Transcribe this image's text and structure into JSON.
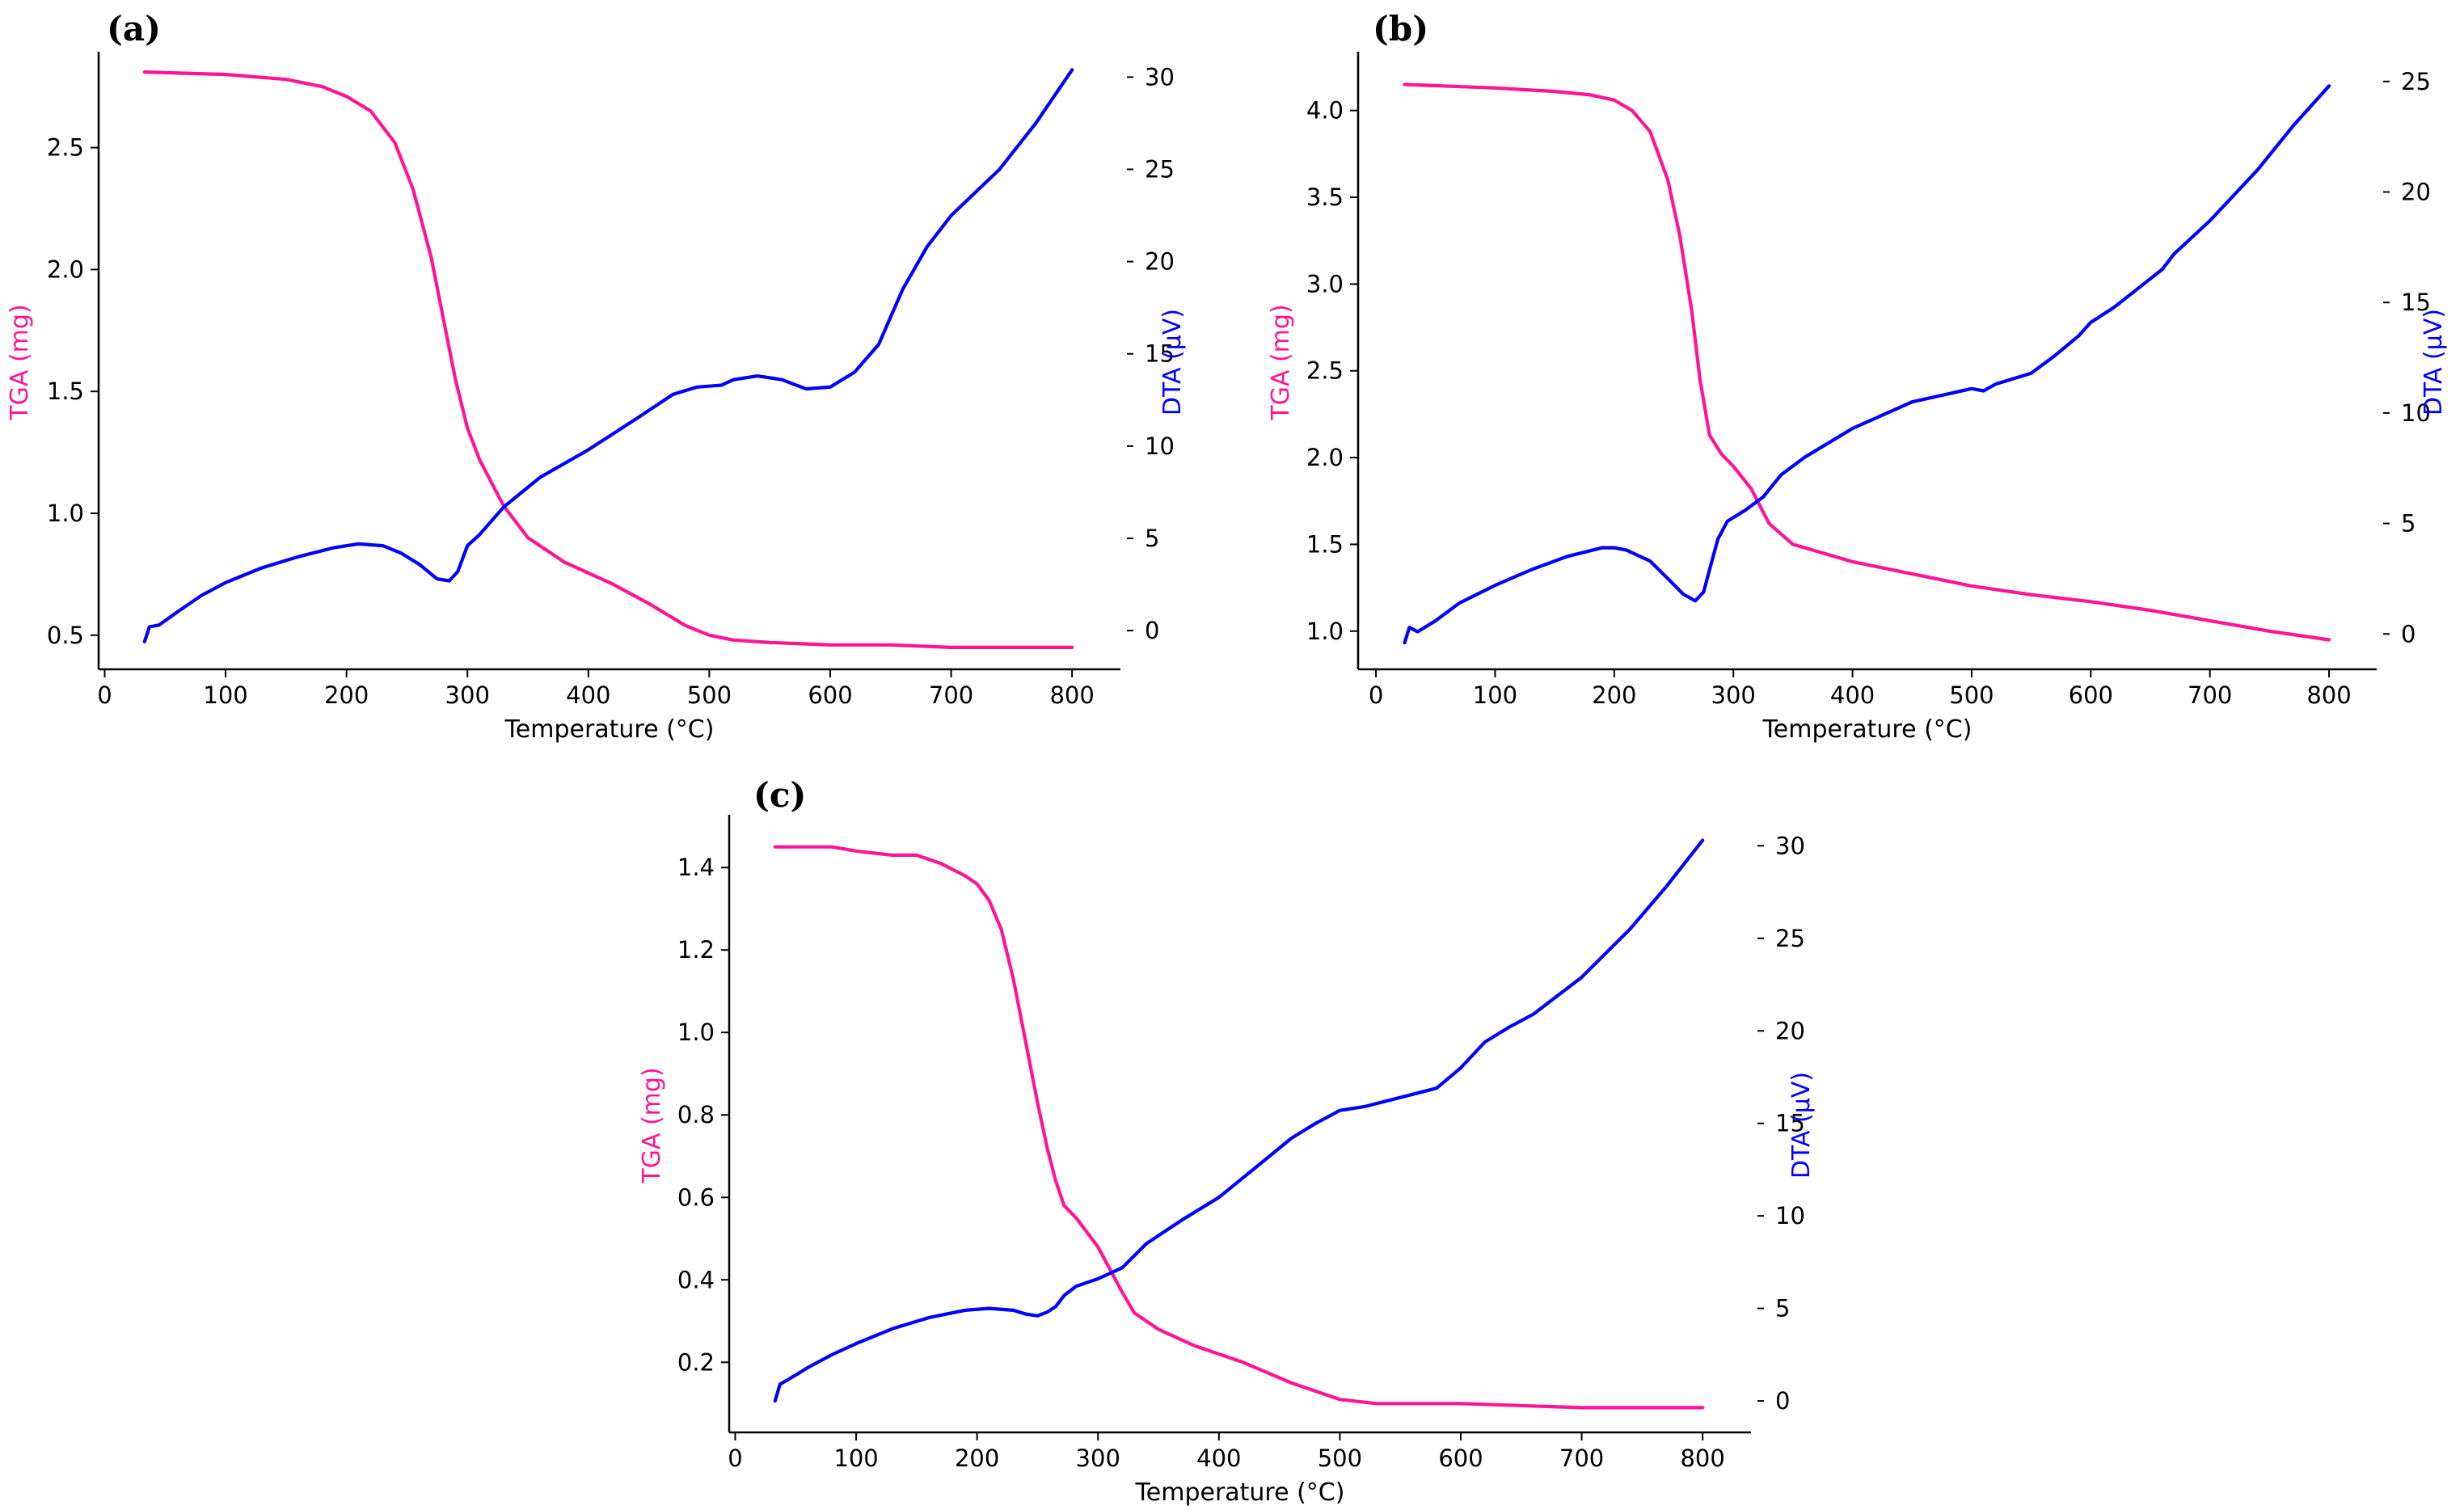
{
  "colors": {
    "tga": "#ff1493",
    "dta": "#0000ff",
    "axis": "#000000"
  },
  "chart_data": [
    {
      "type": "line",
      "panel_label": "(a)",
      "xlabel": "Temperature (°C)",
      "ylabel": "TGA (mg)",
      "y2label": "DTA (µV)",
      "xlim": [
        -5,
        840
      ],
      "ylim": [
        0.36,
        2.88
      ],
      "y2lim": [
        -2.1,
        31.2
      ],
      "xticks": [
        0,
        100,
        200,
        300,
        400,
        500,
        600,
        700,
        800
      ],
      "yticks": [
        0.5,
        1.0,
        1.5,
        2.0,
        2.5
      ],
      "y2ticks": [
        0,
        5,
        10,
        15,
        20,
        25,
        30
      ],
      "series": [
        {
          "name": "TGA",
          "axis": "left",
          "color": "#ff1493",
          "x": [
            33,
            100,
            150,
            180,
            200,
            220,
            240,
            255,
            270,
            280,
            290,
            300,
            310,
            330,
            350,
            380,
            420,
            450,
            480,
            500,
            520,
            550,
            600,
            650,
            700,
            800
          ],
          "y": [
            2.81,
            2.8,
            2.78,
            2.75,
            2.71,
            2.65,
            2.52,
            2.33,
            2.05,
            1.8,
            1.55,
            1.35,
            1.22,
            1.03,
            0.9,
            0.8,
            0.71,
            0.63,
            0.54,
            0.5,
            0.48,
            0.47,
            0.46,
            0.46,
            0.45,
            0.45
          ]
        },
        {
          "name": "DTA",
          "axis": "right",
          "color": "#0000ff",
          "x": [
            33,
            37,
            45,
            60,
            80,
            100,
            130,
            160,
            190,
            210,
            230,
            245,
            260,
            275,
            285,
            292,
            300,
            310,
            330,
            360,
            400,
            440,
            470,
            490,
            510,
            520,
            540,
            560,
            580,
            600,
            620,
            640,
            660,
            680,
            700,
            740,
            770,
            800
          ],
          "y": [
            -0.6,
            0.2,
            0.3,
            1.0,
            1.9,
            2.6,
            3.4,
            4.0,
            4.5,
            4.7,
            4.6,
            4.2,
            3.6,
            2.8,
            2.7,
            3.2,
            4.6,
            5.2,
            6.7,
            8.3,
            9.8,
            11.5,
            12.8,
            13.2,
            13.3,
            13.6,
            13.8,
            13.6,
            13.1,
            13.2,
            14.0,
            15.5,
            18.5,
            20.8,
            22.5,
            25.0,
            27.5,
            30.4
          ]
        }
      ]
    },
    {
      "type": "line",
      "panel_label": "(b)",
      "xlabel": "Temperature (°C)",
      "ylabel": "TGA (mg)",
      "y2label": "DTA (µV)",
      "xlim": [
        -15,
        840
      ],
      "ylim": [
        0.78,
        4.32
      ],
      "y2lim": [
        -1.6,
        26.2
      ],
      "xticks": [
        0,
        100,
        200,
        300,
        400,
        500,
        600,
        700,
        800
      ],
      "yticks": [
        1.0,
        1.5,
        2.0,
        2.5,
        3.0,
        3.5,
        4.0
      ],
      "y2ticks": [
        0,
        5,
        10,
        15,
        20,
        25
      ],
      "series": [
        {
          "name": "TGA",
          "axis": "left",
          "color": "#ff1493",
          "x": [
            24,
            100,
            150,
            180,
            200,
            215,
            230,
            245,
            255,
            265,
            272,
            280,
            290,
            300,
            315,
            330,
            350,
            400,
            450,
            500,
            550,
            600,
            650,
            700,
            750,
            800
          ],
          "y": [
            4.15,
            4.13,
            4.11,
            4.09,
            4.06,
            4.0,
            3.88,
            3.6,
            3.28,
            2.85,
            2.45,
            2.13,
            2.02,
            1.95,
            1.82,
            1.62,
            1.5,
            1.4,
            1.33,
            1.26,
            1.21,
            1.17,
            1.12,
            1.06,
            1.0,
            0.95
          ]
        },
        {
          "name": "DTA",
          "axis": "right",
          "color": "#0000ff",
          "x": [
            24,
            28,
            35,
            50,
            70,
            100,
            130,
            160,
            190,
            200,
            210,
            230,
            245,
            258,
            268,
            275,
            280,
            287,
            295,
            310,
            325,
            340,
            360,
            400,
            450,
            500,
            510,
            520,
            550,
            570,
            590,
            600,
            620,
            660,
            670,
            700,
            740,
            770,
            800
          ],
          "y": [
            -0.4,
            0.3,
            0.1,
            0.6,
            1.4,
            2.2,
            2.9,
            3.5,
            3.9,
            3.9,
            3.8,
            3.3,
            2.5,
            1.8,
            1.5,
            1.9,
            2.9,
            4.3,
            5.1,
            5.6,
            6.2,
            7.2,
            8.0,
            9.3,
            10.5,
            11.1,
            11.0,
            11.3,
            11.8,
            12.6,
            13.5,
            14.1,
            14.8,
            16.5,
            17.2,
            18.7,
            21.0,
            23.0,
            24.8
          ]
        }
      ]
    },
    {
      "type": "line",
      "panel_label": "(c)",
      "xlabel": "Temperature (°C)",
      "ylabel": "TGA (mg)",
      "y2label": "DTA (µV)",
      "xlim": [
        -5,
        840
      ],
      "ylim": [
        0.03,
        1.52
      ],
      "y2lim": [
        -1.7,
        31.5
      ],
      "xticks": [
        0,
        100,
        200,
        300,
        400,
        500,
        600,
        700,
        800
      ],
      "yticks": [
        0.2,
        0.4,
        0.6,
        0.8,
        1.0,
        1.2,
        1.4
      ],
      "y2ticks": [
        0,
        5,
        10,
        15,
        20,
        25,
        30
      ],
      "series": [
        {
          "name": "TGA",
          "axis": "left",
          "color": "#ff1493",
          "x": [
            33,
            80,
            100,
            130,
            150,
            170,
            190,
            200,
            210,
            220,
            230,
            240,
            250,
            258,
            265,
            272,
            282,
            300,
            320,
            330,
            350,
            380,
            420,
            460,
            500,
            530,
            600,
            700,
            800
          ],
          "y": [
            1.45,
            1.45,
            1.44,
            1.43,
            1.43,
            1.41,
            1.38,
            1.36,
            1.32,
            1.25,
            1.13,
            0.98,
            0.83,
            0.72,
            0.64,
            0.58,
            0.55,
            0.48,
            0.37,
            0.32,
            0.28,
            0.24,
            0.2,
            0.15,
            0.11,
            0.1,
            0.1,
            0.09,
            0.09
          ]
        },
        {
          "name": "DTA",
          "axis": "right",
          "color": "#0000ff",
          "x": [
            33,
            37,
            45,
            60,
            80,
            100,
            130,
            160,
            190,
            210,
            230,
            240,
            250,
            258,
            265,
            272,
            282,
            300,
            320,
            340,
            370,
            400,
            430,
            460,
            480,
            500,
            520,
            550,
            580,
            600,
            620,
            640,
            660,
            700,
            740,
            770,
            800
          ],
          "y": [
            0.0,
            0.9,
            1.2,
            1.8,
            2.5,
            3.1,
            3.9,
            4.5,
            4.9,
            5.0,
            4.9,
            4.7,
            4.6,
            4.8,
            5.1,
            5.7,
            6.2,
            6.6,
            7.2,
            8.5,
            9.8,
            11.0,
            12.6,
            14.2,
            15.0,
            15.7,
            15.9,
            16.4,
            16.9,
            18.0,
            19.4,
            20.2,
            20.9,
            22.9,
            25.5,
            27.8,
            30.3
          ]
        }
      ]
    }
  ]
}
